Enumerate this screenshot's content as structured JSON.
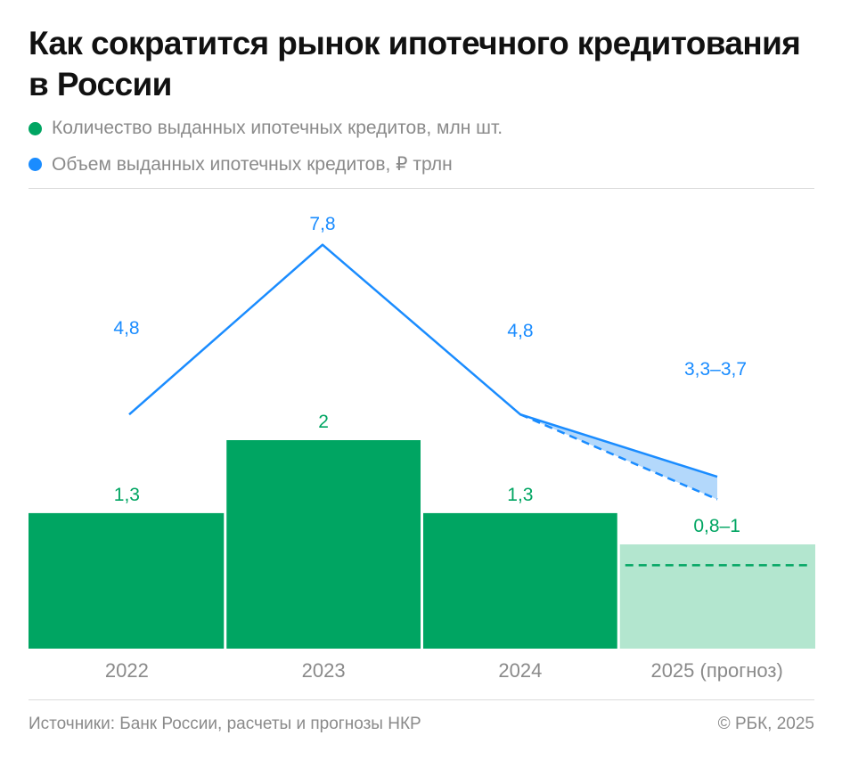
{
  "title": "Как сократится рынок ипотечного кредитования в России",
  "legend": [
    {
      "label": "Количество выданных ипотечных кредитов, млн шт.",
      "color": "#00a562"
    },
    {
      "label": "Объем выданных ипотечных кредитов, ₽ трлн",
      "color": "#1a8cff"
    }
  ],
  "chart_data": {
    "type": "bar+line",
    "categories": [
      "2022",
      "2023",
      "2024",
      "2025 (прогноз)"
    ],
    "series": [
      {
        "name": "Количество выданных ипотечных кредитов, млн шт.",
        "type": "bar",
        "color": "#00a562",
        "forecast_color": "#b3e6cf",
        "values": [
          1.3,
          2,
          1.3,
          1.0
        ],
        "forecast_low": 0.8,
        "labels": [
          "1,3",
          "2",
          "1,3",
          "0,8–1"
        ]
      },
      {
        "name": "Объем выданных ипотечных кредитов, ₽ трлн",
        "type": "line",
        "color": "#1a8cff",
        "forecast_fill": "#b3d8fb",
        "values": [
          4.8,
          7.8,
          4.8,
          3.7
        ],
        "forecast_low": 3.3,
        "labels": [
          "4,8",
          "7,8",
          "4,8",
          "3,3–3,7"
        ]
      }
    ]
  },
  "footer": {
    "source": "Источники: Банк России, расчеты и прогнозы НКР",
    "copyright": "© РБК, 2025"
  }
}
